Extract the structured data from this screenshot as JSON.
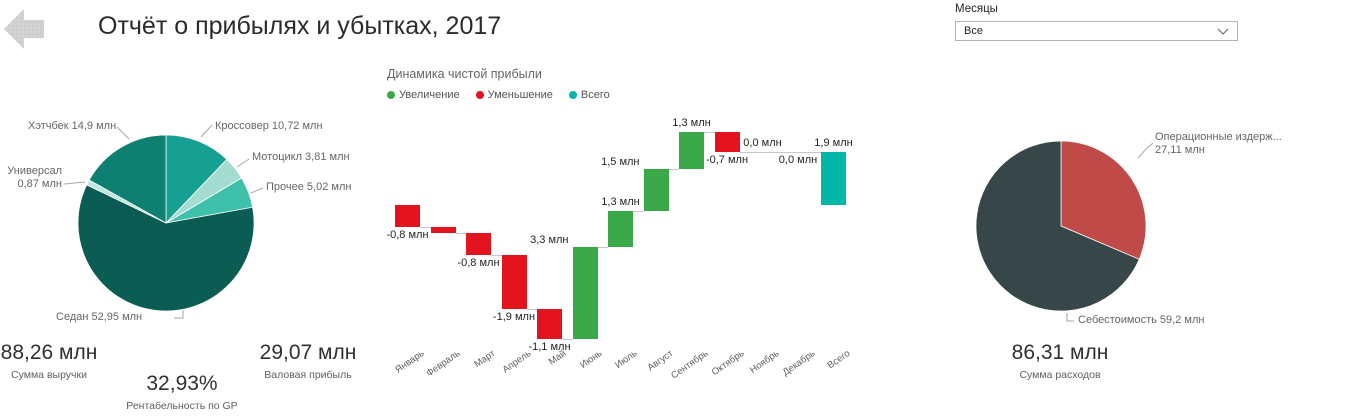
{
  "header": {
    "title": "Отчёт о прибылях и убытках,  2017"
  },
  "slicer": {
    "label": "Месяцы",
    "value": "Все"
  },
  "kpis": {
    "revenue": {
      "value": "88,26 млн",
      "label": "Сумма выручки"
    },
    "gp_margin": {
      "value": "32,93%",
      "label": "Рентабельность по GP"
    },
    "gross_profit": {
      "value": "29,07 млн",
      "label": "Валовая прибыль"
    },
    "expenses": {
      "value": "86,31 млн",
      "label": "Сумма расходов"
    }
  },
  "chart_data": [
    {
      "id": "revenue_by_model_pie",
      "type": "pie",
      "categories": [
        "Кроссовер",
        "Мотоцикл",
        "Прочее",
        "Седан",
        "Универсал",
        "Хэтчбек"
      ],
      "values": [
        10.72,
        3.81,
        5.02,
        52.95,
        0.87,
        14.9
      ],
      "colors": [
        "#16a091",
        "#a3ddd2",
        "#3ec0ab",
        "#0b5d53",
        "#bfe8df",
        "#0d8072"
      ],
      "labels": [
        "Кроссовер 10,72 млн",
        "Мотоцикл 3,81 млн",
        "Прочее 5,02 млн",
        "Седан 52,95 млн",
        "Универсал\n0,87 млн",
        "Хэтчбек 14,9 млн"
      ],
      "unit": "млн",
      "start_angle_deg": 0,
      "direction": "clockwise"
    },
    {
      "id": "net_profit_waterfall",
      "type": "bar",
      "subtype": "waterfall",
      "title": "Динамика чистой прибыли",
      "legend": [
        {
          "label": "Увеличение",
          "color": "#3aa94a"
        },
        {
          "label": "Уменьшение",
          "color": "#e3131f"
        },
        {
          "label": "Всего",
          "color": "#00b7a8"
        }
      ],
      "legend_position": "top",
      "categories": [
        "Январь",
        "Февраль",
        "Март",
        "Апрель",
        "Май",
        "Июнь",
        "Июль",
        "Август",
        "Сентябрь",
        "Октябрь",
        "Ноябрь",
        "Декабрь",
        "Всего"
      ],
      "values": [
        -0.8,
        -0.2,
        -0.8,
        -1.9,
        -1.1,
        3.3,
        1.3,
        1.5,
        1.3,
        -0.7,
        0.0,
        0.0,
        1.9
      ],
      "is_total": [
        false,
        false,
        false,
        false,
        false,
        false,
        false,
        false,
        false,
        false,
        false,
        false,
        true
      ],
      "data_labels": [
        "-0,8 млн",
        null,
        "-0,8 млн",
        "-1,9 млн",
        "-1,1 млн",
        "3,3 млн",
        "1,3 млн",
        "1,5 млн",
        "1,3 млн",
        "-0,7 млн",
        "0,0 млн",
        "0,0 млн",
        "1,9 млн"
      ],
      "label_placement": [
        "below",
        null,
        "below",
        "below",
        "below",
        "left",
        "above",
        "left",
        "above",
        "below",
        "above",
        "below",
        "above"
      ],
      "ylim": [
        -5,
        3
      ],
      "grid": false,
      "unit": "млн"
    },
    {
      "id": "expenses_pie",
      "type": "pie",
      "categories": [
        "Операционные издержки",
        "Себестоимость"
      ],
      "values": [
        27.11,
        59.2
      ],
      "colors": [
        "#c04a48",
        "#374649"
      ],
      "labels": [
        "Операционные издерж...\n27,11 млн",
        "Себестоимость 59,2 млн"
      ],
      "unit": "млн",
      "start_angle_deg": 0,
      "direction": "clockwise"
    }
  ]
}
